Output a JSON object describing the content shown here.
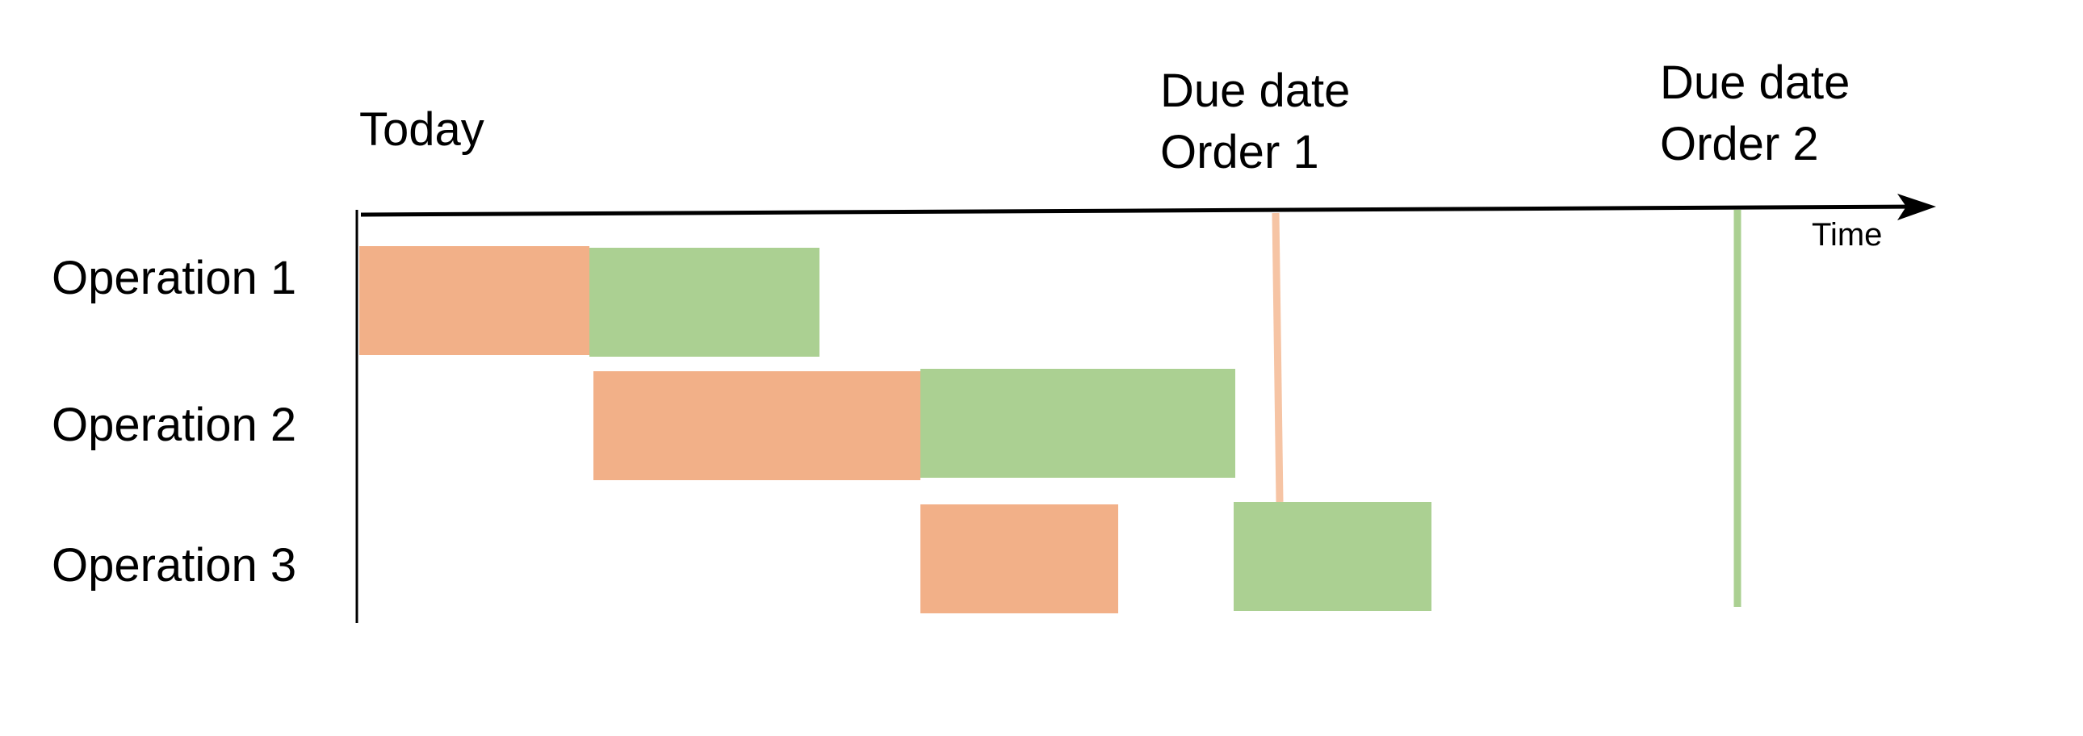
{
  "labels": {
    "today": "Today",
    "due_date_order1": [
      "Due date",
      "Order 1"
    ],
    "due_date_order2": [
      "Due date",
      "Order 2"
    ],
    "time_axis": "Time"
  },
  "operations": [
    "Operation 1",
    "Operation 2",
    "Operation 3"
  ],
  "colors": {
    "order1": "#f2b088",
    "order2": "#abd092",
    "order1_due_line": "#f6c4a4",
    "order2_due_line": "#abd092",
    "axis": "#000000"
  }
}
